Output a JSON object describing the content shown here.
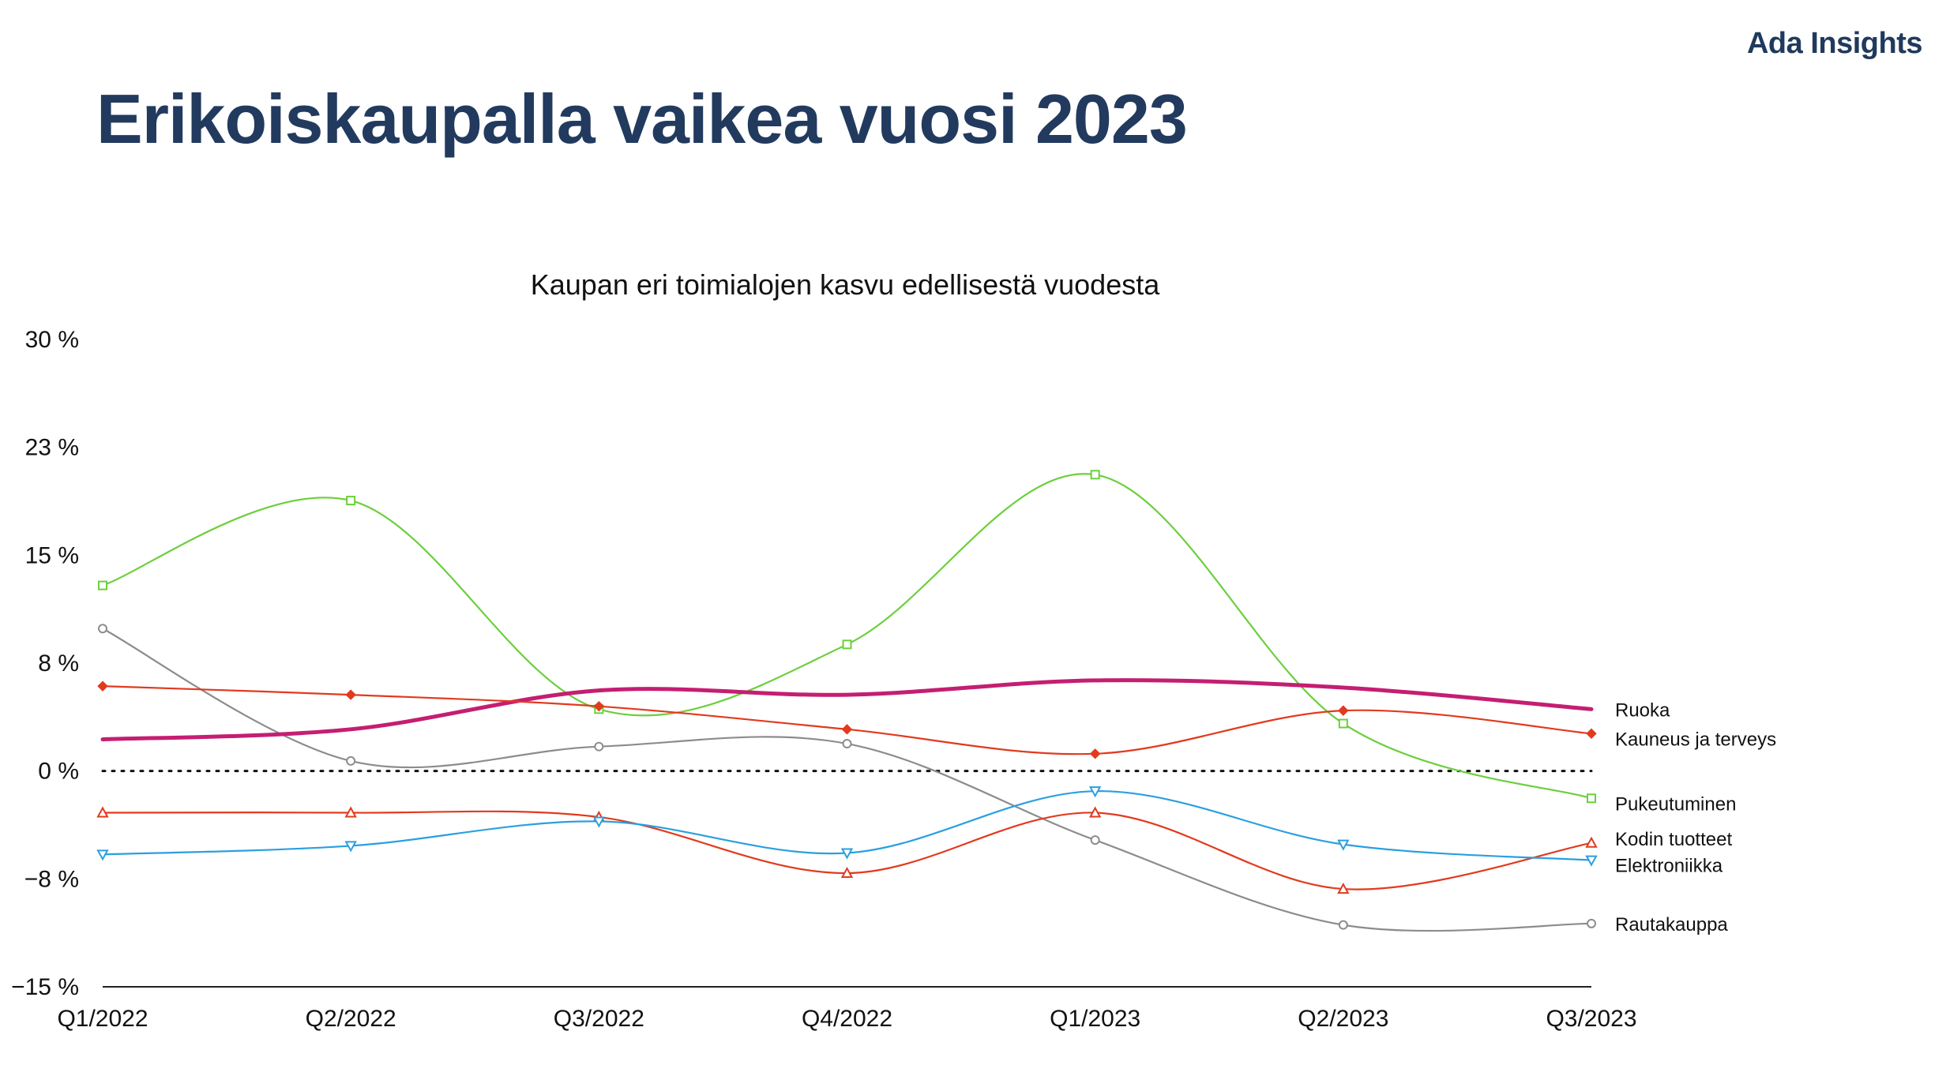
{
  "brand": "Ada Insights",
  "page_title": "Erikoiskaupalla vaikea vuosi 2023",
  "chart_data": {
    "type": "line",
    "title": "Kaupan eri toimialojen kasvu edellisestä vuodesta",
    "xlabel": "",
    "ylabel": "",
    "categories": [
      "Q1/2022",
      "Q2/2022",
      "Q3/2022",
      "Q4/2022",
      "Q1/2023",
      "Q2/2023",
      "Q3/2023"
    ],
    "ylim": [
      -15,
      30
    ],
    "yticks": [
      30,
      22.5,
      15,
      7.5,
      0,
      -7.5,
      -15
    ],
    "ytick_labels": [
      "30 %",
      "23 %",
      "15 %",
      "8 %",
      "0 %",
      "−8 %",
      "−15 %"
    ],
    "zero_line": "dotted",
    "grid": false,
    "legend": "right-edge labels",
    "series": [
      {
        "name": "Pukeutuminen",
        "color": "#6ccf3c",
        "marker": "square",
        "values": [
          12.9,
          18.8,
          4.3,
          8.8,
          20.6,
          3.3,
          -1.9
        ]
      },
      {
        "name": "Rautakauppa",
        "color": "#8c8c8c",
        "marker": "circle",
        "values": [
          9.9,
          0.7,
          1.7,
          1.9,
          -4.8,
          -10.7,
          -10.6
        ]
      },
      {
        "name": "Ruoka",
        "color": "#c41e72",
        "marker": "none",
        "values": [
          2.2,
          2.9,
          5.6,
          5.3,
          6.3,
          5.8,
          4.3
        ]
      },
      {
        "name": "Kauneus ja terveys",
        "color": "#e23a1e",
        "marker": "diamond",
        "values": [
          5.9,
          5.3,
          4.5,
          2.9,
          1.2,
          4.2,
          2.6
        ]
      },
      {
        "name": "Kodin tuotteet",
        "color": "#e23a1e",
        "marker": "triangle-up",
        "values": [
          -2.9,
          -2.9,
          -3.2,
          -7.1,
          -2.9,
          -8.2,
          -5.0
        ]
      },
      {
        "name": "Elektroniikka",
        "color": "#2b9fe0",
        "marker": "triangle-down",
        "values": [
          -5.8,
          -5.2,
          -3.5,
          -5.7,
          -1.4,
          -5.1,
          -6.2
        ]
      }
    ]
  }
}
